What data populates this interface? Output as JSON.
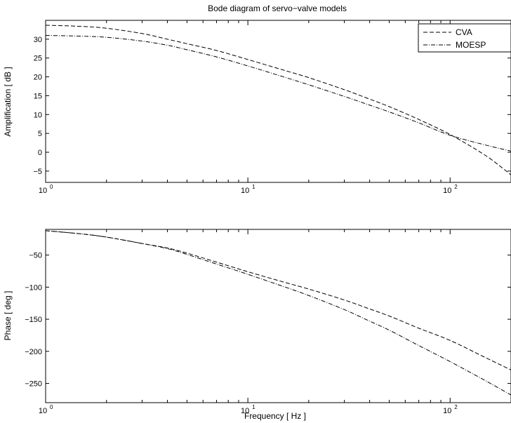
{
  "chart_data": [
    {
      "type": "line",
      "title": "Bode diagram of servo−valve models",
      "xlabel": "",
      "ylabel": "Amplification [ dB ]",
      "xscale": "log",
      "xlim": [
        1,
        200
      ],
      "ylim": [
        -8,
        35
      ],
      "xticks": [
        {
          "value": 1,
          "base": "10",
          "exp": "0"
        },
        {
          "value": 10,
          "base": "10",
          "exp": "1"
        },
        {
          "value": 100,
          "base": "10",
          "exp": "2"
        }
      ],
      "yticks": [
        -5,
        0,
        5,
        10,
        15,
        20,
        25,
        30
      ],
      "grid": false,
      "legend": {
        "position": "top-right",
        "entries": [
          "CVA",
          "MOESP"
        ]
      },
      "series": [
        {
          "name": "CVA",
          "style": "dashed",
          "x": [
            1,
            1.5,
            2,
            3,
            4,
            5,
            7,
            10,
            15,
            20,
            30,
            40,
            50,
            70,
            100,
            150,
            200
          ],
          "y": [
            33.7,
            33.4,
            32.9,
            31.5,
            30.0,
            28.8,
            27.0,
            24.6,
            21.8,
            19.8,
            16.6,
            14.1,
            12.1,
            8.7,
            4.7,
            -0.9,
            -6.0
          ]
        },
        {
          "name": "MOESP",
          "style": "dashdot",
          "x": [
            1,
            1.5,
            2,
            3,
            4,
            5,
            7,
            10,
            15,
            20,
            30,
            40,
            50,
            70,
            100,
            150,
            200
          ],
          "y": [
            31.0,
            30.8,
            30.5,
            29.5,
            28.4,
            27.2,
            25.3,
            22.9,
            20.0,
            17.9,
            14.8,
            12.5,
            10.7,
            7.8,
            4.5,
            1.9,
            0.3
          ]
        }
      ]
    },
    {
      "type": "line",
      "title": "",
      "xlabel": "Frequency [ Hz ]",
      "ylabel": "Phase [ deg ]",
      "xscale": "log",
      "xlim": [
        1,
        200
      ],
      "ylim": [
        -280,
        -10
      ],
      "xticks": [
        {
          "value": 1,
          "base": "10",
          "exp": "0"
        },
        {
          "value": 10,
          "base": "10",
          "exp": "1"
        },
        {
          "value": 100,
          "base": "10",
          "exp": "2"
        }
      ],
      "yticks": [
        -250,
        -200,
        -150,
        -100,
        -50
      ],
      "grid": false,
      "series": [
        {
          "name": "CVA",
          "style": "dashed",
          "x": [
            1,
            1.5,
            2,
            3,
            4,
            5,
            7,
            10,
            15,
            20,
            30,
            40,
            50,
            70,
            100,
            150,
            200
          ],
          "y": [
            -12,
            -17,
            -22,
            -32,
            -39,
            -47,
            -61,
            -76,
            -92,
            -103,
            -120,
            -134,
            -145,
            -164,
            -183,
            -210,
            -229
          ]
        },
        {
          "name": "MOESP",
          "style": "dashdot",
          "x": [
            1,
            1.5,
            2,
            3,
            4,
            5,
            7,
            10,
            15,
            20,
            30,
            40,
            50,
            70,
            100,
            150,
            200
          ],
          "y": [
            -12,
            -17,
            -22,
            -32,
            -40,
            -49,
            -64,
            -80,
            -99,
            -113,
            -135,
            -153,
            -167,
            -191,
            -216,
            -246,
            -268
          ]
        }
      ]
    }
  ]
}
